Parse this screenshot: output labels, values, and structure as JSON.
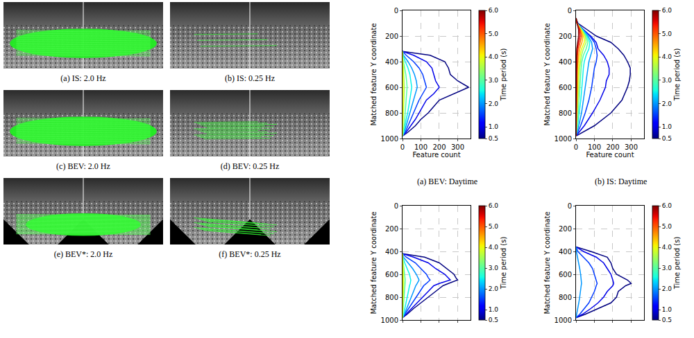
{
  "image_panels": [
    {
      "caption": "(a) IS: 2.0 Hz"
    },
    {
      "caption": "(b) IS: 0.25 Hz"
    },
    {
      "caption": "(c) BEV: 2.0 Hz"
    },
    {
      "caption": "(d) BEV: 0.25 Hz"
    },
    {
      "caption": "(e) BEV*: 2.0 Hz"
    },
    {
      "caption": "(f) BEV*: 0.25 Hz"
    }
  ],
  "chart_data": [
    {
      "type": "line",
      "title": "(a) BEV: Daytime",
      "x_label": "Feature count",
      "y_label": "Matched feature Y coordinate",
      "xlim": [
        0,
        370
      ],
      "xticks": [
        0,
        100,
        200,
        300
      ],
      "ylim": [
        1000,
        0
      ],
      "yticks": [
        0,
        200,
        400,
        600,
        800,
        1000
      ],
      "grid": true,
      "colorbar": {
        "title": "Time period (s)",
        "range": [
          0.5,
          6.0
        ],
        "ticks": [
          0.5,
          {
            "value": 1,
            "label": "1.0"
          },
          {
            "value": 2,
            "label": "2.0"
          },
          {
            "value": 3,
            "label": "3.0"
          },
          {
            "value": 4,
            "label": "4.0"
          },
          {
            "value": 5,
            "label": "5.0"
          },
          {
            "value": 6,
            "label": "6.0"
          }
        ]
      },
      "y": [
        320,
        350,
        400,
        450,
        500,
        550,
        600,
        650,
        700,
        750,
        800,
        850,
        900,
        950,
        980
      ],
      "series": [
        {
          "time_period": 0.5,
          "values": [
            0,
            150,
            230,
            250,
            260,
            300,
            360,
            280,
            200,
            170,
            140,
            100,
            70,
            30,
            0
          ]
        },
        {
          "time_period": 1.0,
          "values": [
            0,
            60,
            130,
            160,
            170,
            180,
            200,
            170,
            130,
            110,
            90,
            70,
            45,
            20,
            0
          ]
        },
        {
          "time_period": 1.5,
          "values": [
            0,
            20,
            60,
            90,
            110,
            120,
            130,
            110,
            90,
            75,
            60,
            45,
            30,
            15,
            0
          ]
        },
        {
          "time_period": 2.0,
          "values": [
            0,
            5,
            30,
            50,
            65,
            75,
            80,
            70,
            60,
            50,
            40,
            30,
            20,
            10,
            0
          ]
        },
        {
          "time_period": 2.5,
          "values": [
            0,
            2,
            15,
            30,
            40,
            45,
            50,
            45,
            40,
            35,
            28,
            20,
            14,
            7,
            0
          ]
        },
        {
          "time_period": 3.0,
          "values": [
            0,
            0,
            5,
            12,
            18,
            22,
            25,
            22,
            20,
            18,
            15,
            12,
            8,
            4,
            0
          ]
        },
        {
          "time_period": 3.5,
          "values": [
            0,
            0,
            2,
            5,
            7,
            9,
            10,
            9,
            8,
            7,
            6,
            5,
            3,
            2,
            0
          ]
        },
        {
          "time_period": 4.0,
          "values": [
            0,
            0,
            1,
            2,
            3,
            4,
            5,
            4,
            4,
            3,
            3,
            2,
            1,
            1,
            0
          ]
        }
      ]
    },
    {
      "type": "line",
      "title": "(b) IS: Daytime",
      "x_label": "Feature count",
      "y_label": "Matched feature Y coordinate",
      "xlim": [
        0,
        370
      ],
      "xticks": [
        0,
        100,
        200,
        300
      ],
      "ylim": [
        1000,
        0
      ],
      "yticks": [
        0,
        200,
        400,
        600,
        800,
        1000
      ],
      "grid": true,
      "colorbar": {
        "title": "Time period (s)",
        "range": [
          0.5,
          6.0
        ],
        "ticks": [
          0.5,
          {
            "value": 1,
            "label": "1.0"
          },
          {
            "value": 2,
            "label": "2.0"
          },
          {
            "value": 3,
            "label": "3.0"
          },
          {
            "value": 4,
            "label": "4.0"
          },
          {
            "value": 5,
            "label": "5.0"
          },
          {
            "value": 6,
            "label": "6.0"
          }
        ]
      },
      "y": [
        60,
        100,
        150,
        200,
        250,
        300,
        350,
        400,
        450,
        500,
        550,
        600,
        700,
        800,
        900,
        980
      ],
      "series": [
        {
          "time_period": 0.5,
          "values": [
            0,
            10,
            60,
            110,
            190,
            230,
            260,
            280,
            295,
            295,
            290,
            280,
            250,
            190,
            100,
            0
          ]
        },
        {
          "time_period": 1.0,
          "values": [
            0,
            5,
            40,
            80,
            110,
            120,
            150,
            170,
            180,
            180,
            165,
            160,
            130,
            90,
            45,
            0
          ]
        },
        {
          "time_period": 1.5,
          "values": [
            0,
            5,
            40,
            75,
            100,
            110,
            115,
            110,
            100,
            95,
            90,
            85,
            70,
            50,
            25,
            0
          ]
        },
        {
          "time_period": 2.0,
          "values": [
            0,
            5,
            35,
            65,
            85,
            90,
            80,
            70,
            65,
            60,
            55,
            50,
            40,
            30,
            15,
            0
          ]
        },
        {
          "time_period": 2.5,
          "values": [
            0,
            5,
            35,
            60,
            75,
            70,
            55,
            45,
            40,
            38,
            35,
            32,
            26,
            18,
            9,
            0
          ]
        },
        {
          "time_period": 3.0,
          "values": [
            0,
            5,
            30,
            55,
            65,
            55,
            40,
            32,
            28,
            26,
            24,
            22,
            18,
            12,
            6,
            0
          ]
        },
        {
          "time_period": 3.5,
          "values": [
            0,
            5,
            30,
            50,
            55,
            40,
            30,
            24,
            20,
            18,
            16,
            15,
            12,
            8,
            4,
            0
          ]
        },
        {
          "time_period": 4.0,
          "values": [
            0,
            5,
            28,
            45,
            45,
            30,
            22,
            17,
            14,
            12,
            11,
            10,
            8,
            5,
            3,
            0
          ]
        },
        {
          "time_period": 4.5,
          "values": [
            0,
            5,
            25,
            38,
            32,
            20,
            14,
            10,
            8,
            7,
            6,
            6,
            5,
            3,
            2,
            0
          ]
        },
        {
          "time_period": 5.0,
          "values": [
            0,
            5,
            22,
            30,
            22,
            12,
            8,
            6,
            5,
            4,
            4,
            4,
            3,
            2,
            1,
            0
          ]
        },
        {
          "time_period": 5.5,
          "values": [
            0,
            5,
            18,
            22,
            14,
            7,
            5,
            4,
            3,
            3,
            3,
            3,
            2,
            1,
            1,
            0
          ]
        },
        {
          "time_period": 6.0,
          "values": [
            0,
            5,
            14,
            14,
            8,
            4,
            3,
            2,
            2,
            2,
            2,
            2,
            1,
            1,
            1,
            0
          ]
        }
      ]
    },
    {
      "type": "line",
      "y_label": "Matched feature Y coordinate",
      "xlim": [
        0,
        370
      ],
      "xticks": [
        0,
        100,
        200,
        300
      ],
      "ylim": [
        1000,
        0
      ],
      "yticks": [
        0,
        200,
        400,
        600,
        800,
        1000
      ],
      "grid": true,
      "tick_labels": "y",
      "colorbar": {
        "title": "Time period (s)",
        "range": [
          0.5,
          6.0
        ],
        "ticks": [
          0.5,
          {
            "value": 1,
            "label": "1.0"
          },
          {
            "value": 2,
            "label": "2.0"
          },
          {
            "value": 3,
            "label": "3.0"
          },
          {
            "value": 4,
            "label": "4.0"
          },
          {
            "value": 5,
            "label": "5.0"
          },
          {
            "value": 6,
            "label": "6.0"
          }
        ]
      },
      "y": [
        420,
        450,
        500,
        550,
        600,
        630,
        650,
        680,
        700,
        750,
        800,
        850,
        900,
        950,
        980
      ],
      "series": [
        {
          "time_period": 0.5,
          "values": [
            0,
            120,
            200,
            240,
            280,
            290,
            300,
            250,
            220,
            180,
            140,
            100,
            60,
            25,
            0
          ]
        },
        {
          "time_period": 1.0,
          "values": [
            0,
            60,
            140,
            180,
            230,
            250,
            260,
            200,
            170,
            140,
            110,
            80,
            50,
            20,
            0
          ]
        },
        {
          "time_period": 1.5,
          "values": [
            0,
            20,
            70,
            100,
            130,
            140,
            150,
            130,
            115,
            95,
            75,
            55,
            35,
            15,
            0
          ]
        },
        {
          "time_period": 2.0,
          "values": [
            0,
            5,
            30,
            55,
            75,
            85,
            90,
            80,
            72,
            60,
            48,
            35,
            22,
            10,
            0
          ]
        },
        {
          "time_period": 2.5,
          "values": [
            0,
            2,
            12,
            25,
            38,
            42,
            45,
            42,
            38,
            32,
            26,
            19,
            12,
            6,
            0
          ]
        },
        {
          "time_period": 3.0,
          "values": [
            0,
            0,
            4,
            8,
            12,
            14,
            15,
            14,
            13,
            11,
            9,
            7,
            4,
            2,
            0
          ]
        },
        {
          "time_period": 3.5,
          "values": [
            0,
            0,
            2,
            4,
            6,
            7,
            8,
            7,
            6,
            5,
            4,
            3,
            2,
            1,
            0
          ]
        },
        {
          "time_period": 4.0,
          "values": [
            0,
            0,
            1,
            2,
            3,
            3,
            4,
            3,
            3,
            2,
            2,
            1,
            1,
            1,
            0
          ]
        }
      ]
    },
    {
      "type": "line",
      "y_label": "Matched feature Y coordinate",
      "xlim": [
        0,
        370
      ],
      "xticks": [
        0,
        100,
        200,
        300
      ],
      "ylim": [
        1000,
        0
      ],
      "yticks": [
        0,
        200,
        400,
        600,
        800,
        1000
      ],
      "grid": true,
      "tick_labels": "y",
      "colorbar": {
        "title": "Time period (s)",
        "range": [
          0.5,
          6.0
        ],
        "ticks": [
          0.5,
          {
            "value": 1,
            "label": "1.0"
          },
          {
            "value": 2,
            "label": "2.0"
          },
          {
            "value": 3,
            "label": "3.0"
          },
          {
            "value": 4,
            "label": "4.0"
          },
          {
            "value": 5,
            "label": "5.0"
          },
          {
            "value": 6,
            "label": "6.0"
          }
        ]
      },
      "y": [
        360,
        400,
        450,
        500,
        550,
        600,
        650,
        680,
        700,
        750,
        800,
        850,
        900,
        950,
        980
      ],
      "series": [
        {
          "time_period": 0.5,
          "values": [
            0,
            80,
            170,
            190,
            200,
            220,
            280,
            300,
            270,
            230,
            220,
            190,
            120,
            50,
            0
          ]
        },
        {
          "time_period": 1.0,
          "values": [
            0,
            40,
            110,
            150,
            170,
            190,
            200,
            205,
            200,
            170,
            150,
            120,
            80,
            35,
            0
          ]
        },
        {
          "time_period": 1.5,
          "values": [
            0,
            10,
            40,
            70,
            90,
            100,
            110,
            115,
            110,
            100,
            85,
            70,
            45,
            20,
            0
          ]
        },
        {
          "time_period": 2.0,
          "values": [
            0,
            2,
            8,
            15,
            20,
            25,
            28,
            30,
            28,
            25,
            20,
            15,
            10,
            5,
            0
          ]
        }
      ]
    }
  ]
}
